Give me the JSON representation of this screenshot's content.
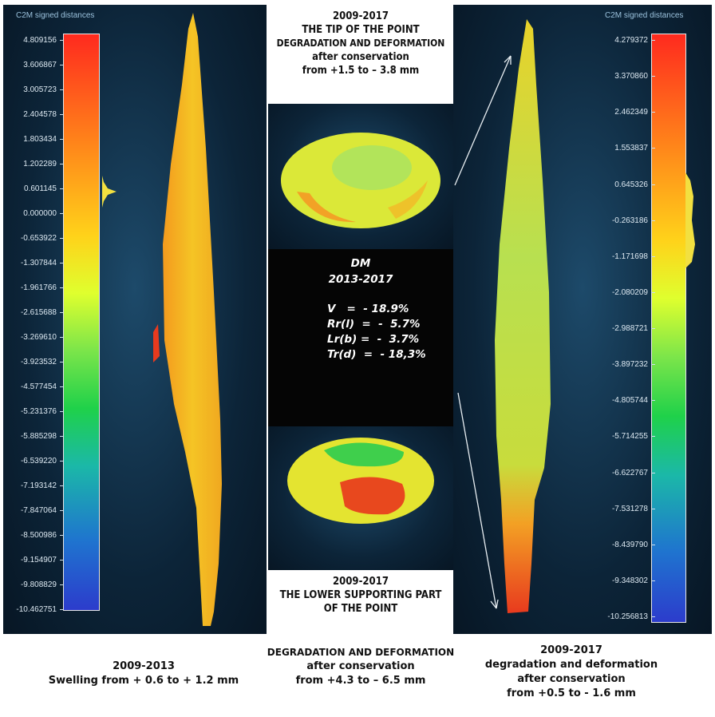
{
  "left_scale": {
    "title": "C2M signed distances",
    "ticks": [
      "4.809156",
      "3.606867",
      "3.005723",
      "2.404578",
      "1.803434",
      "1.202289",
      "0.601145",
      "0.000000",
      "-0.653922",
      "-1.307844",
      "-1.961766",
      "-2.615688",
      "-3.269610",
      "-3.923532",
      "-4.577454",
      "-5.231376",
      "-5.885298",
      "-6.539220",
      "-7.193142",
      "-7.847064",
      "-8.500986",
      "-9.154907",
      "-9.808829",
      "-10.462751"
    ]
  },
  "right_scale": {
    "title": "C2M signed distances",
    "ticks": [
      "4.279372",
      "3.370860",
      "2.462349",
      "1.553837",
      "0.645326",
      "-0.263186",
      "-1.171698",
      "-2.080209",
      "-2.988721",
      "-3.897232",
      "-4.805744",
      "-5.714255",
      "-6.622767",
      "-7.531278",
      "-8.439790",
      "-9.348302",
      "-10.256813"
    ]
  },
  "top_box": {
    "line1": "2009-2017",
    "line2": "THE TIP OF THE POINT",
    "line3": "DEGRADATION AND DEFORMATION",
    "line4": "after conservation",
    "line5": "from +1.5 to – 3.8 mm"
  },
  "dm_box": {
    "title": "DM",
    "period": "2013-2017",
    "rows": [
      "V   =  - 18.9%",
      "Rr(l)  =  -  5.7%",
      "Lr(b) =  -  3.7%",
      "Tr(d)  =  - 18,3%"
    ]
  },
  "bottom_box": {
    "line1": "2009-2017",
    "line2": "THE LOWER SUPPORTING PART",
    "line3": "OF THE POINT"
  },
  "captions": {
    "left": [
      "2009-2013",
      "Swelling from + 0.6 to + 1.2 mm"
    ],
    "center": [
      "DEGRADATION AND DEFORMATION",
      "after conservation",
      "from +4.3 to – 6.5 mm"
    ],
    "right": [
      "2009-2017",
      "degradation and deformation",
      "after conservation",
      "from +0.5 to - 1.6 mm"
    ]
  },
  "colors": {
    "scan_bg": "#0c2438",
    "yellow": "#f2d21e",
    "orange": "#f39a1e",
    "red": "#e83a1e",
    "green": "#7ad94a"
  }
}
